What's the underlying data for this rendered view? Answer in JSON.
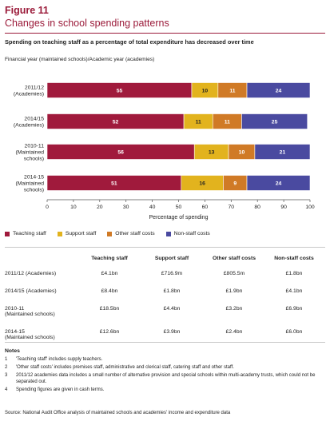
{
  "figure": {
    "label": "Figure 11",
    "title": "Changes in school spending patterns",
    "subtitle": "Spending on teaching staff as a percentage of total expenditure has decreased over time",
    "axis_caption": "Financial year (maintained schools)/Academic year (academies)"
  },
  "colors": {
    "teaching": "#a01a3c",
    "support": "#e2b31e",
    "other": "#d07a26",
    "nonstaff": "#4a4aa0"
  },
  "chart_data": {
    "type": "bar",
    "orientation": "horizontal",
    "stacked": true,
    "categories": [
      [
        "2011/12",
        "(Academies)"
      ],
      [
        "2014/15",
        "(Academies)"
      ],
      [
        "2010-11",
        "(Maintained",
        "schools)"
      ],
      [
        "2014-15",
        "(Maintained",
        "schools)"
      ]
    ],
    "series": [
      {
        "name": "Teaching staff",
        "color_key": "teaching",
        "values": [
          55,
          52,
          56,
          51
        ]
      },
      {
        "name": "Support staff",
        "color_key": "support",
        "values": [
          10,
          11,
          13,
          16
        ]
      },
      {
        "name": "Other staff costs",
        "color_key": "other",
        "values": [
          11,
          11,
          10,
          9
        ]
      },
      {
        "name": "Non-staff costs",
        "color_key": "nonstaff",
        "values": [
          24,
          25,
          21,
          24
        ]
      }
    ],
    "xlabel": "Percentage of spending",
    "xlim": [
      0,
      100
    ],
    "xticks": [
      0,
      10,
      20,
      30,
      40,
      50,
      60,
      70,
      80,
      90,
      100
    ],
    "legend_position": "bottom",
    "grid": false
  },
  "table": {
    "headers": [
      "",
      "Teaching staff",
      "Support staff",
      "Other staff costs",
      "Non-staff costs"
    ],
    "rows": [
      {
        "label": [
          "2011/12 (Academies)"
        ],
        "cells": [
          "£4.1bn",
          "£716.9m",
          "£805.5m",
          "£1.8bn"
        ]
      },
      {
        "label": [
          "2014/15 (Academies)"
        ],
        "cells": [
          "£8.4bn",
          "£1.8bn",
          "£1.9bn",
          "£4.1bn"
        ]
      },
      {
        "label": [
          "2010-11",
          "(Maintained schools)"
        ],
        "cells": [
          "£18.5bn",
          "£4.4bn",
          "£3.2bn",
          "£6.9bn"
        ]
      },
      {
        "label": [
          "2014-15",
          "(Maintained schools)"
        ],
        "cells": [
          "£12.6bn",
          "£3.9bn",
          "£2.4bn",
          "£6.0bn"
        ]
      }
    ]
  },
  "notes": {
    "title": "Notes",
    "items": [
      {
        "num": "1",
        "text": "'Teaching staff' includes supply teachers."
      },
      {
        "num": "2",
        "text": "'Other staff costs' includes premises staff, administrative and clerical staff, catering staff and other staff."
      },
      {
        "num": "3",
        "text": "2011/12 academies data includes a small number of alternative provision and special schools within multi-academy trusts, which could not be separated out."
      },
      {
        "num": "4",
        "text": "Spending figures are given in cash terms."
      }
    ]
  },
  "source": "Source: National Audit Office analysis of maintained schools and academies' income and expenditure data"
}
